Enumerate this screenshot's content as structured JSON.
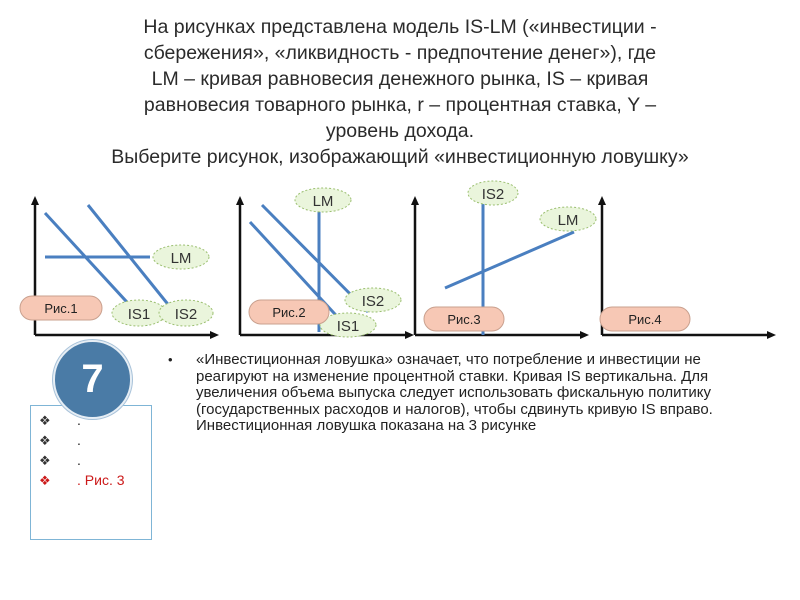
{
  "title_lines": [
    "На рисунках представлена модель IS-LM («инвестиции -",
    "сбережения», «ликвидность - предпочтение денег»), где",
    "LM – кривая равновесия денежного рынка, IS – кривая",
    "равновесия товарного рынка, r – процентная ставка, Y –",
    "уровень дохода.",
    "Выберите рисунок, изображающий «инвестиционную ловушку»"
  ],
  "figures": [
    {
      "caption": "Рис.1",
      "labels": {
        "lm": "LM",
        "is1": "IS1",
        "is2": "IS2"
      }
    },
    {
      "caption": "Рис.2",
      "labels": {
        "lm": "LM",
        "is1": "IS1",
        "is2": "IS2"
      }
    },
    {
      "caption": "Рис.3",
      "labels": {
        "lm": "LM",
        "is2": "IS2"
      }
    },
    {
      "caption": "Рис.4",
      "labels": {}
    }
  ],
  "question_number": "7",
  "answers": [
    {
      "mark": "❖",
      "text": "."
    },
    {
      "mark": "❖",
      "text": "."
    },
    {
      "mark": "❖",
      "text": "."
    },
    {
      "mark": "❖",
      "text": ". Рис. 3"
    }
  ],
  "explanation": {
    "bullet": "•",
    "text": "«Инвестиционная ловушка» означает, что потребление и инвестиции не реагируют на изменение процентной ставки. Кривая IS вертикальна. Для увеличения объема выпуска следует использовать фискальную политику (государственных расходов и налогов), чтобы сдвинуть кривую IS вправо. Инвестиционная ловушка показана на 3 рисунке"
  },
  "colors": {
    "line_blue": "#4a7fc0",
    "label_fill": "#eaf5dc",
    "label_border": "#9bbf70",
    "caption_fill": "#f7c8b5",
    "caption_border": "#c9a08e",
    "highlight": "#cc1a1a",
    "circle_fill": "#4a7ba6"
  }
}
